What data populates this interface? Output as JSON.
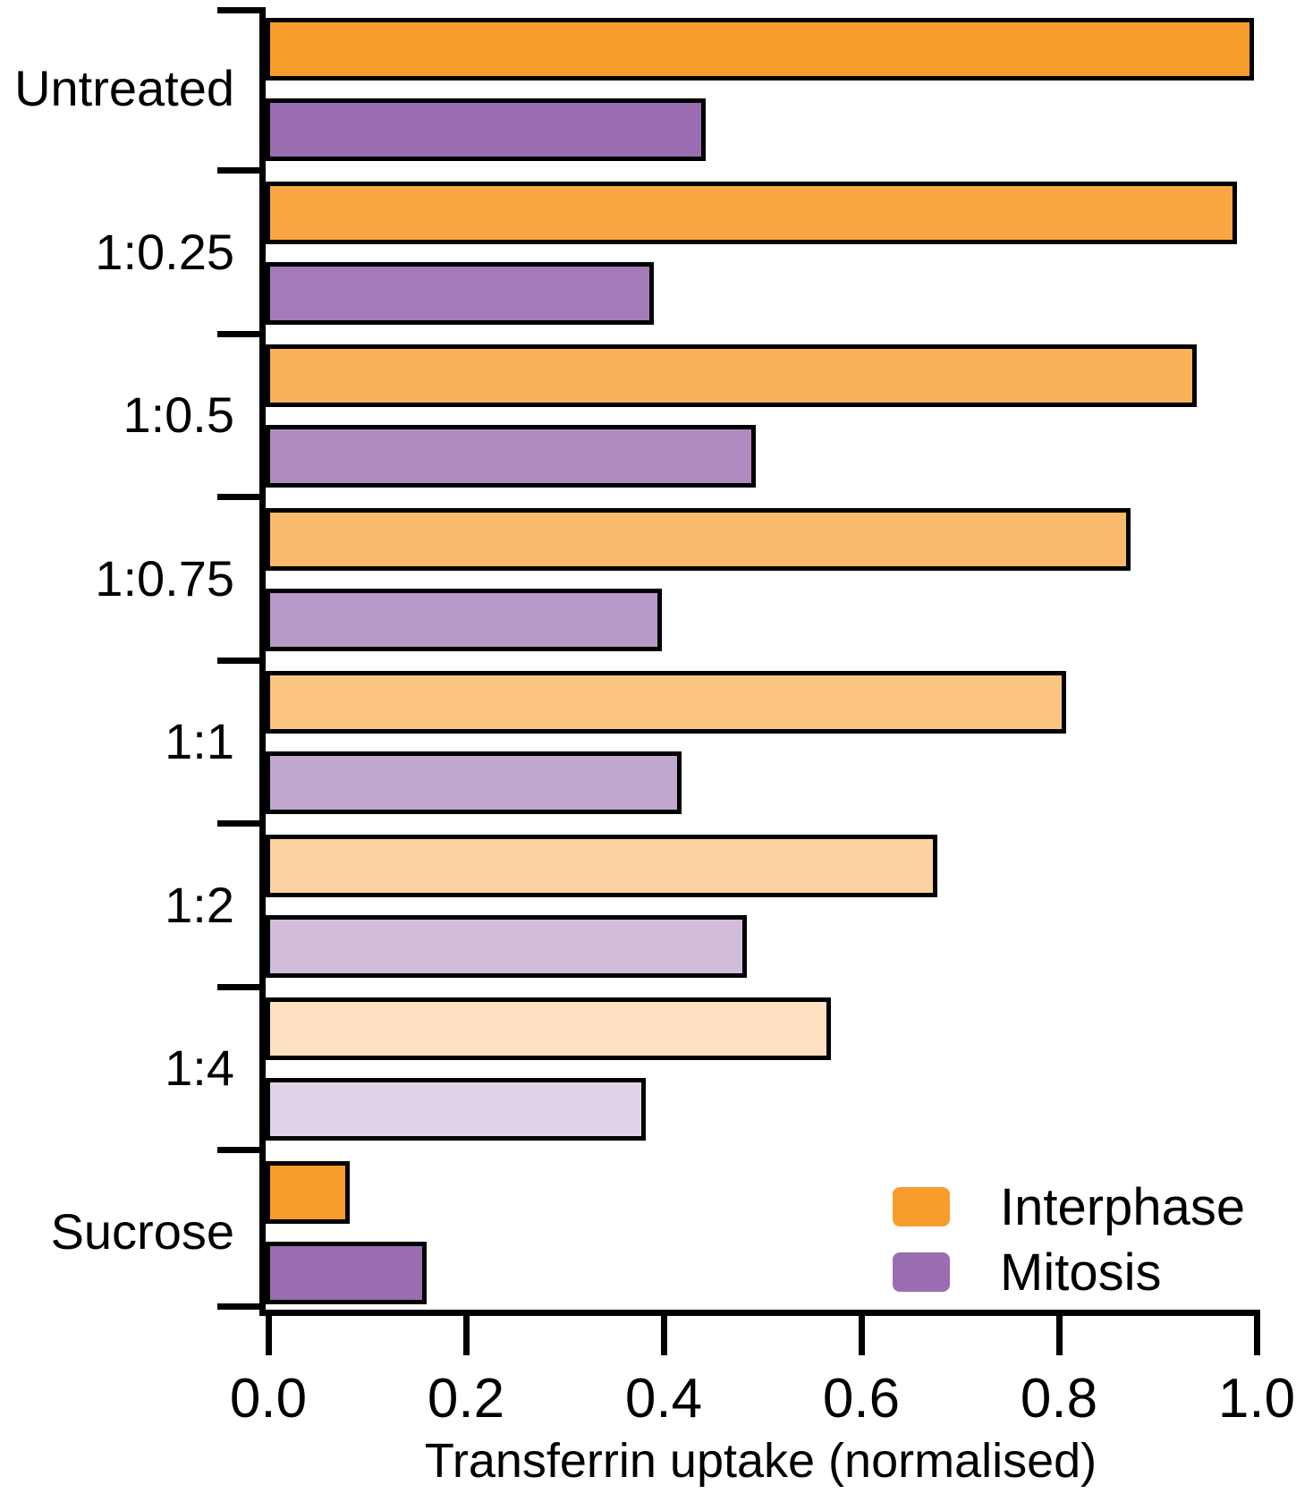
{
  "chart_data": {
    "type": "bar",
    "orientation": "horizontal",
    "title": "",
    "xlabel": "Transferrin uptake (normalised)",
    "ylabel": "",
    "xlim": [
      0.0,
      1.0
    ],
    "x_ticks": [
      0.0,
      0.2,
      0.4,
      0.6,
      0.8,
      1.0
    ],
    "x_tick_labels": [
      "0.0",
      "0.2",
      "0.4",
      "0.6",
      "0.8",
      "1.0"
    ],
    "categories": [
      "Untreated",
      "1:0.25",
      "1:0.5",
      "1:0.75",
      "1:1",
      "1:2",
      "1:4",
      "Sucrose"
    ],
    "series": [
      {
        "name": "Interphase",
        "base_color": "#F89D2D",
        "values": [
          1.0,
          0.983,
          0.942,
          0.875,
          0.81,
          0.68,
          0.572,
          0.085
        ]
      },
      {
        "name": "Mitosis",
        "base_color": "#9A6DB0",
        "values": [
          0.445,
          0.393,
          0.496,
          0.401,
          0.421,
          0.487,
          0.385,
          0.163
        ]
      }
    ],
    "row_color_alphas": [
      1.0,
      0.9,
      0.8,
      0.7,
      0.6,
      0.45,
      0.3,
      1.0
    ],
    "bar_edge_color": "#000000",
    "axis_color": "#000000",
    "grid": false,
    "legend_position": "lower right"
  },
  "legend": {
    "interphase_label": "Interphase",
    "mitosis_label": "Mitosis",
    "interphase_color": "#F89D2D",
    "mitosis_color": "#9A6DB0"
  }
}
